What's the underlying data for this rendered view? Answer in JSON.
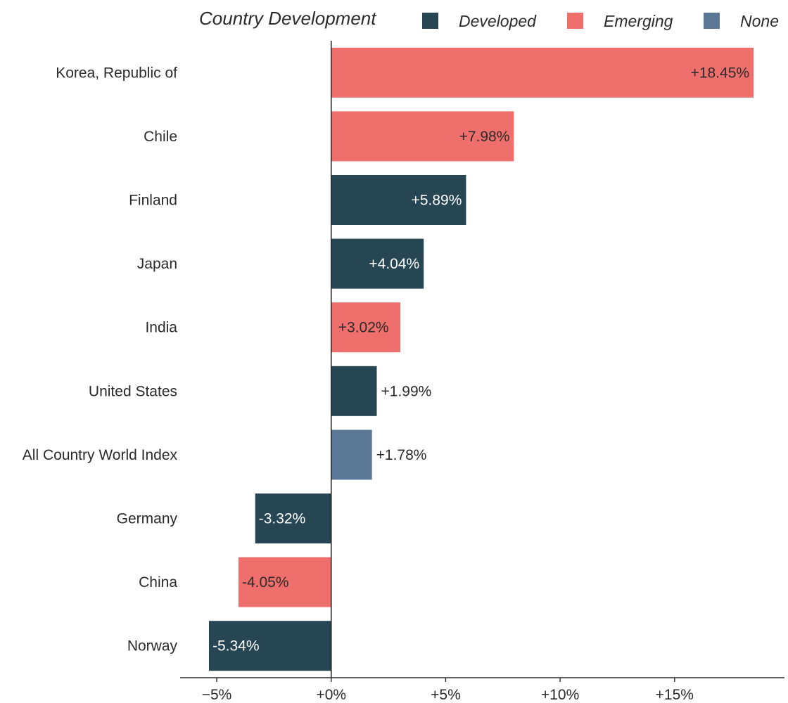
{
  "chart_data": {
    "type": "bar",
    "orientation": "horizontal",
    "legend": {
      "title": "Country Development",
      "placement": "top",
      "entries": [
        {
          "key": "developed",
          "label": "Developed",
          "color": "#264653"
        },
        {
          "key": "emerging",
          "label": "Emerging",
          "color": "#ef6f6c"
        },
        {
          "key": "none",
          "label": "None",
          "color": "#5a7896"
        }
      ]
    },
    "categories": [
      "Korea, Republic of",
      "Chile",
      "Finland",
      "Japan",
      "India",
      "United States",
      "All Country World Index",
      "Germany",
      "China",
      "Norway"
    ],
    "values": [
      18.45,
      7.98,
      5.89,
      4.04,
      3.02,
      1.99,
      1.78,
      -3.32,
      -4.05,
      -5.34
    ],
    "groups": [
      "emerging",
      "emerging",
      "developed",
      "developed",
      "emerging",
      "developed",
      "none",
      "developed",
      "emerging",
      "developed"
    ],
    "value_labels": [
      "+18.45%",
      "+7.98%",
      "+5.89%",
      "+4.04%",
      "+3.02%",
      "+1.99%",
      "+1.78%",
      "-3.32%",
      "-4.05%",
      "-5.34%"
    ],
    "xaxis": {
      "range": [
        -6.6,
        19.8
      ],
      "ticks": [
        -5,
        0,
        5,
        10,
        15
      ],
      "tick_labels": [
        "−5%",
        "+0%",
        "+5%",
        "+10%",
        "+15%"
      ]
    },
    "xlabel": "",
    "ylabel": "",
    "grid": false,
    "colors": {
      "axis": "#2b2b2b",
      "text_dark": "#2b2b2b",
      "text_light": "#ffffff"
    }
  }
}
